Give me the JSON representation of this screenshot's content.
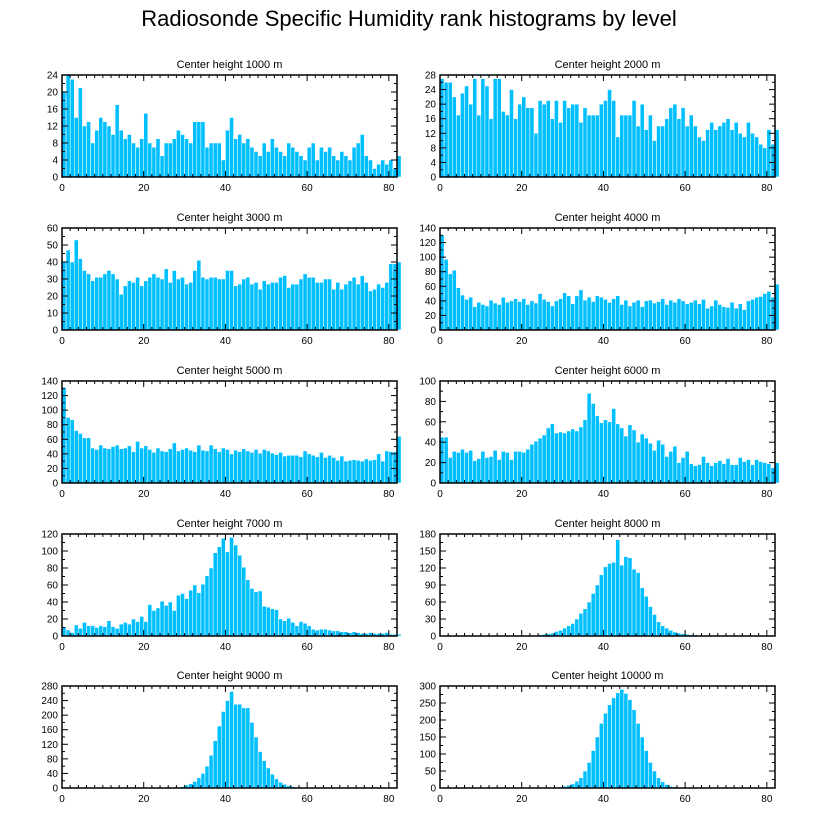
{
  "title": "Radiosonde Specific Humidity rank histograms by level",
  "colors": {
    "bar": "#00BFFF",
    "bar_edge": "#ffffff",
    "axis": "#000000"
  },
  "chart_data": [
    {
      "type": "bar",
      "title": "Center height 1000 m",
      "xlim": [
        0,
        82
      ],
      "ylim": [
        0,
        24
      ],
      "xticks": [
        0,
        20,
        40,
        60,
        80
      ],
      "yticks": [
        0,
        4,
        8,
        12,
        16,
        20,
        24
      ],
      "values": [
        20,
        24,
        23,
        14,
        21,
        12,
        13,
        8,
        11,
        14,
        13,
        12,
        10,
        17,
        11,
        9,
        10,
        8,
        7,
        9,
        15,
        8,
        7,
        9,
        5,
        8,
        8,
        9,
        11,
        10,
        9,
        8,
        13,
        13,
        13,
        7,
        8,
        8,
        8,
        4,
        11,
        14,
        9,
        10,
        8,
        9,
        7,
        6,
        5,
        8,
        6,
        9,
        7,
        6,
        5,
        8,
        7,
        6,
        5,
        4,
        7,
        8,
        4,
        7,
        6,
        7,
        5,
        4,
        6,
        5,
        4,
        7,
        8,
        10,
        5,
        4,
        2,
        3,
        4,
        3,
        4,
        2,
        5
      ]
    },
    {
      "type": "bar",
      "title": "Center height 2000 m",
      "xlim": [
        0,
        82
      ],
      "ylim": [
        0,
        28
      ],
      "xticks": [
        0,
        20,
        40,
        60,
        80
      ],
      "yticks": [
        0,
        4,
        8,
        12,
        16,
        20,
        24,
        28
      ],
      "values": [
        27,
        26,
        26,
        22,
        17,
        23,
        25,
        20,
        27,
        17,
        27,
        25,
        16,
        27,
        27,
        18,
        17,
        24,
        16,
        20,
        22,
        19,
        19,
        12,
        21,
        20,
        21,
        16,
        21,
        15,
        21,
        19,
        20,
        20,
        15,
        19,
        17,
        17,
        17,
        20,
        21,
        24,
        21,
        11,
        17,
        17,
        17,
        21,
        14,
        20,
        13,
        17,
        10,
        14,
        14,
        16,
        19,
        20,
        16,
        19,
        14,
        17,
        14,
        11,
        10,
        13,
        15,
        13,
        14,
        15,
        16,
        13,
        15,
        12,
        11,
        15,
        12,
        11,
        9,
        8,
        13,
        9,
        13
      ]
    },
    {
      "type": "bar",
      "title": "Center height 3000 m",
      "xlim": [
        0,
        82
      ],
      "ylim": [
        0,
        60
      ],
      "xticks": [
        0,
        20,
        40,
        60,
        80
      ],
      "yticks": [
        0,
        10,
        20,
        30,
        40,
        50,
        60
      ],
      "values": [
        40,
        47,
        40,
        53,
        42,
        35,
        33,
        29,
        31,
        31,
        33,
        35,
        33,
        30,
        21,
        26,
        29,
        28,
        31,
        26,
        29,
        31,
        33,
        31,
        30,
        36,
        28,
        35,
        30,
        31,
        27,
        28,
        35,
        41,
        31,
        30,
        31,
        31,
        30,
        30,
        35,
        35,
        26,
        27,
        30,
        31,
        27,
        28,
        24,
        29,
        27,
        28,
        28,
        31,
        32,
        25,
        27,
        27,
        30,
        33,
        31,
        31,
        28,
        28,
        30,
        30,
        24,
        28,
        24,
        27,
        29,
        31,
        27,
        32,
        28,
        23,
        24,
        27,
        25,
        28,
        39,
        39,
        40
      ]
    },
    {
      "type": "bar",
      "title": "Center height 4000 m",
      "xlim": [
        0,
        82
      ],
      "ylim": [
        0,
        140
      ],
      "xticks": [
        0,
        20,
        40,
        60,
        80
      ],
      "yticks": [
        0,
        20,
        40,
        60,
        80,
        100,
        120,
        140
      ],
      "values": [
        130,
        97,
        77,
        82,
        58,
        48,
        42,
        45,
        32,
        38,
        35,
        33,
        41,
        37,
        35,
        45,
        38,
        40,
        43,
        39,
        43,
        35,
        40,
        37,
        50,
        42,
        39,
        33,
        40,
        43,
        51,
        47,
        36,
        47,
        55,
        41,
        45,
        39,
        47,
        45,
        42,
        38,
        43,
        47,
        35,
        41,
        33,
        38,
        41,
        32,
        40,
        41,
        37,
        39,
        43,
        35,
        41,
        38,
        43,
        40,
        36,
        38,
        41,
        36,
        42,
        30,
        33,
        41,
        35,
        32,
        31,
        38,
        30,
        36,
        28,
        40,
        42,
        45,
        46,
        50,
        53,
        45,
        63
      ]
    },
    {
      "type": "bar",
      "title": "Center height 5000 m",
      "xlim": [
        0,
        82
      ],
      "ylim": [
        0,
        140
      ],
      "xticks": [
        0,
        20,
        40,
        60,
        80
      ],
      "yticks": [
        0,
        20,
        40,
        60,
        80,
        100,
        120,
        140
      ],
      "values": [
        131,
        90,
        87,
        72,
        68,
        62,
        62,
        48,
        46,
        52,
        48,
        47,
        50,
        52,
        47,
        48,
        51,
        43,
        57,
        48,
        51,
        46,
        42,
        48,
        44,
        43,
        47,
        55,
        44,
        46,
        48,
        45,
        43,
        52,
        45,
        44,
        52,
        47,
        43,
        48,
        46,
        40,
        45,
        43,
        47,
        44,
        42,
        46,
        41,
        46,
        44,
        41,
        39,
        42,
        37,
        38,
        38,
        38,
        36,
        44,
        40,
        38,
        36,
        42,
        35,
        38,
        35,
        31,
        37,
        30,
        31,
        32,
        31,
        30,
        33,
        31,
        32,
        40,
        30,
        44,
        43,
        43,
        64
      ]
    },
    {
      "type": "bar",
      "title": "Center height 6000 m",
      "xlim": [
        0,
        82
      ],
      "ylim": [
        0,
        100
      ],
      "xticks": [
        0,
        20,
        40,
        60,
        80
      ],
      "yticks": [
        0,
        20,
        40,
        60,
        80,
        100
      ],
      "values": [
        45,
        45,
        25,
        31,
        30,
        33,
        30,
        32,
        22,
        24,
        31,
        25,
        26,
        32,
        23,
        31,
        30,
        23,
        31,
        31,
        30,
        33,
        38,
        41,
        44,
        47,
        54,
        58,
        49,
        50,
        49,
        51,
        53,
        51,
        55,
        62,
        88,
        78,
        66,
        59,
        62,
        60,
        73,
        58,
        54,
        46,
        57,
        52,
        40,
        48,
        44,
        39,
        32,
        42,
        38,
        26,
        31,
        36,
        20,
        25,
        31,
        19,
        17,
        18,
        26,
        20,
        17,
        20,
        22,
        19,
        24,
        18,
        18,
        25,
        21,
        23,
        18,
        23,
        21,
        20,
        19,
        15,
        20
      ]
    },
    {
      "type": "bar",
      "title": "Center height 7000 m",
      "xlim": [
        0,
        82
      ],
      "ylim": [
        0,
        120
      ],
      "xticks": [
        0,
        20,
        40,
        60,
        80
      ],
      "yticks": [
        0,
        20,
        40,
        60,
        80,
        100,
        120
      ],
      "values": [
        11,
        7,
        4,
        13,
        9,
        16,
        12,
        12,
        10,
        12,
        11,
        18,
        11,
        9,
        14,
        16,
        14,
        20,
        17,
        23,
        17,
        37,
        30,
        33,
        41,
        36,
        40,
        30,
        48,
        50,
        44,
        54,
        60,
        51,
        61,
        71,
        80,
        98,
        105,
        115,
        99,
        116,
        107,
        95,
        81,
        66,
        56,
        52,
        53,
        35,
        34,
        32,
        31,
        20,
        18,
        21,
        16,
        12,
        17,
        15,
        12,
        8,
        7,
        8,
        8,
        7,
        6,
        6,
        5,
        5,
        4,
        5,
        4,
        3,
        3,
        4,
        3,
        3,
        3,
        4,
        2,
        2,
        2
      ]
    },
    {
      "type": "bar",
      "title": "Center height 8000 m",
      "xlim": [
        0,
        82
      ],
      "ylim": [
        0,
        180
      ],
      "xticks": [
        0,
        20,
        40,
        60,
        80
      ],
      "yticks": [
        0,
        30,
        60,
        90,
        120,
        150,
        180
      ],
      "values": [
        0,
        0,
        0,
        0,
        0,
        0,
        0,
        0,
        0,
        0,
        0,
        0,
        0,
        0,
        0,
        0,
        0,
        0,
        0,
        0,
        0,
        1,
        1,
        1,
        2,
        3,
        4,
        5,
        8,
        10,
        14,
        18,
        22,
        30,
        40,
        48,
        60,
        75,
        90,
        108,
        122,
        128,
        130,
        170,
        125,
        140,
        138,
        118,
        112,
        85,
        70,
        52,
        38,
        25,
        18,
        14,
        10,
        7,
        5,
        4,
        3,
        2,
        2,
        1,
        1,
        1,
        1,
        0,
        0,
        0,
        0,
        0,
        0,
        0,
        0,
        0,
        0,
        0,
        0,
        0,
        0,
        0,
        0
      ]
    },
    {
      "type": "bar",
      "title": "Center height 9000 m",
      "xlim": [
        0,
        82
      ],
      "ylim": [
        0,
        280
      ],
      "xticks": [
        0,
        20,
        40,
        60,
        80
      ],
      "yticks": [
        0,
        40,
        80,
        120,
        160,
        200,
        240,
        280
      ],
      "values": [
        0,
        0,
        0,
        0,
        0,
        0,
        0,
        0,
        0,
        0,
        0,
        0,
        0,
        0,
        0,
        0,
        0,
        0,
        0,
        0,
        0,
        0,
        0,
        0,
        0,
        0,
        0,
        1,
        2,
        4,
        8,
        12,
        18,
        28,
        40,
        60,
        90,
        130,
        170,
        210,
        240,
        265,
        230,
        230,
        220,
        220,
        180,
        140,
        100,
        75,
        55,
        38,
        25,
        16,
        10,
        6,
        4,
        2,
        1,
        1,
        0,
        0,
        0,
        0,
        0,
        0,
        0,
        0,
        0,
        0,
        0,
        0,
        0,
        0,
        0,
        0,
        0,
        0,
        0,
        0,
        0,
        0,
        0
      ]
    },
    {
      "type": "bar",
      "title": "Center height 10000 m",
      "xlim": [
        0,
        82
      ],
      "ylim": [
        0,
        300
      ],
      "xticks": [
        0,
        20,
        40,
        60,
        80
      ],
      "yticks": [
        0,
        50,
        100,
        150,
        200,
        250,
        300
      ],
      "values": [
        0,
        0,
        0,
        0,
        0,
        0,
        0,
        0,
        0,
        0,
        0,
        0,
        0,
        0,
        0,
        0,
        0,
        0,
        0,
        0,
        0,
        0,
        0,
        0,
        0,
        0,
        0,
        1,
        2,
        3,
        5,
        8,
        12,
        20,
        30,
        50,
        75,
        110,
        150,
        190,
        220,
        245,
        265,
        280,
        290,
        278,
        260,
        230,
        190,
        150,
        110,
        75,
        50,
        30,
        18,
        10,
        5,
        3,
        2,
        1,
        1,
        0,
        0,
        0,
        0,
        0,
        0,
        0,
        0,
        0,
        0,
        0,
        0,
        0,
        0,
        0,
        0,
        0,
        0,
        0,
        0,
        0,
        0
      ]
    }
  ]
}
